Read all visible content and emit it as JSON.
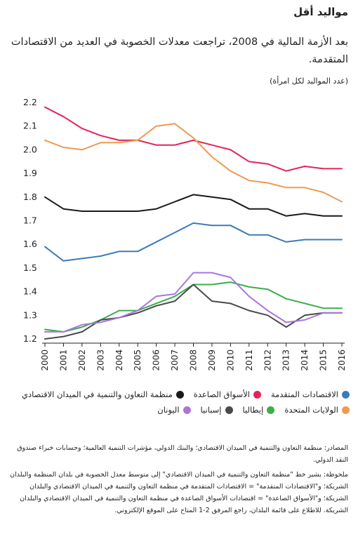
{
  "header": {
    "title": "مواليد أقل",
    "subtitle": "بعد الأزمة المالية في 2008، تراجعت معدلات الخصوبة في العديد من الاقتصادات المتقدمة.",
    "unit": "(عدد المواليد لكل امرأة)"
  },
  "chart_data": {
    "type": "line",
    "x": [
      2000,
      2001,
      2002,
      2003,
      2004,
      2005,
      2006,
      2007,
      2008,
      2009,
      2010,
      2011,
      2012,
      2013,
      2014,
      2015,
      2016
    ],
    "ylim": [
      1.2,
      2.2
    ],
    "yticks": [
      "1.2",
      "1.3",
      "1.4",
      "1.5",
      "1.6",
      "1.7",
      "1.8",
      "1.9",
      "2.0",
      "2.1",
      "2.2"
    ],
    "grid": false,
    "legend_position": "bottom",
    "series": [
      {
        "name": "الاقتصادات المتقدمة",
        "color": "#3d7ab8",
        "values": [
          1.59,
          1.53,
          1.54,
          1.55,
          1.57,
          1.57,
          1.61,
          1.65,
          1.69,
          1.68,
          1.68,
          1.64,
          1.64,
          1.61,
          1.62,
          1.62,
          1.62
        ]
      },
      {
        "name": "الأسواق الصاعدة",
        "color": "#e4235b",
        "values": [
          2.18,
          2.14,
          2.09,
          2.06,
          2.04,
          2.04,
          2.02,
          2.02,
          2.04,
          2.02,
          2.0,
          1.95,
          1.94,
          1.91,
          1.93,
          1.92,
          1.92
        ]
      },
      {
        "name": "منظمة التعاون والتنمية في الميدان الاقتصادي",
        "color": "#1a1a1a",
        "values": [
          1.8,
          1.75,
          1.74,
          1.74,
          1.74,
          1.74,
          1.75,
          1.78,
          1.81,
          1.8,
          1.79,
          1.75,
          1.75,
          1.72,
          1.73,
          1.72,
          1.72
        ]
      },
      {
        "name": "الولايات المتحدة",
        "color": "#ee9a50",
        "values": [
          2.04,
          2.01,
          2.0,
          2.03,
          2.03,
          2.04,
          2.1,
          2.11,
          2.05,
          1.97,
          1.91,
          1.87,
          1.86,
          1.84,
          1.84,
          1.82,
          1.78
        ]
      },
      {
        "name": "إيطاليا",
        "color": "#3cae4b",
        "values": [
          1.24,
          1.23,
          1.25,
          1.28,
          1.32,
          1.32,
          1.35,
          1.38,
          1.43,
          1.43,
          1.44,
          1.42,
          1.41,
          1.37,
          1.35,
          1.33,
          1.33
        ]
      },
      {
        "name": "إسبانيا",
        "color": "#4a4a4a",
        "values": [
          1.2,
          1.21,
          1.23,
          1.28,
          1.29,
          1.31,
          1.34,
          1.36,
          1.43,
          1.36,
          1.35,
          1.32,
          1.3,
          1.25,
          1.3,
          1.31,
          1.31
        ]
      },
      {
        "name": "اليونان",
        "color": "#a977dc",
        "values": [
          1.23,
          1.23,
          1.26,
          1.27,
          1.29,
          1.32,
          1.38,
          1.39,
          1.48,
          1.48,
          1.46,
          1.38,
          1.32,
          1.27,
          1.28,
          1.31,
          1.31
        ]
      }
    ]
  },
  "legend_order": [
    0,
    1,
    2,
    3,
    4,
    5,
    6
  ],
  "footer": {
    "source": "المصادر: منظمة التعاون والتنمية في الميدان الاقتصادي؛ والبنك الدولي، مؤشرات التنمية العالمية؛ وحسابات خبراء صندوق النقد الدولي.",
    "note": "ملحوظة: يشير خط \"منظمة التعاون والتنمية في الميدان الاقتصادي\" إلى متوسط معدل الخصوبة في بلدان المنظمة والبلدان الشريكة؛ و\"الاقتصادات المتقدمة\" = الاقتصادات المتقدمة في منظمة التعاون والتنمية في الميدان الاقتصادي والبلدان الشريكة؛ و\"الأسواق الصاعدة\" = اقتصادات الأسواق الصاعدة في منظمة التعاون والتنمية في الميدان الاقتصادي والبلدان الشريكة. للاطلاع على قائمة البلدان، راجع المرفق 2-1 المتاح على الموقع الإلكتروني."
  }
}
